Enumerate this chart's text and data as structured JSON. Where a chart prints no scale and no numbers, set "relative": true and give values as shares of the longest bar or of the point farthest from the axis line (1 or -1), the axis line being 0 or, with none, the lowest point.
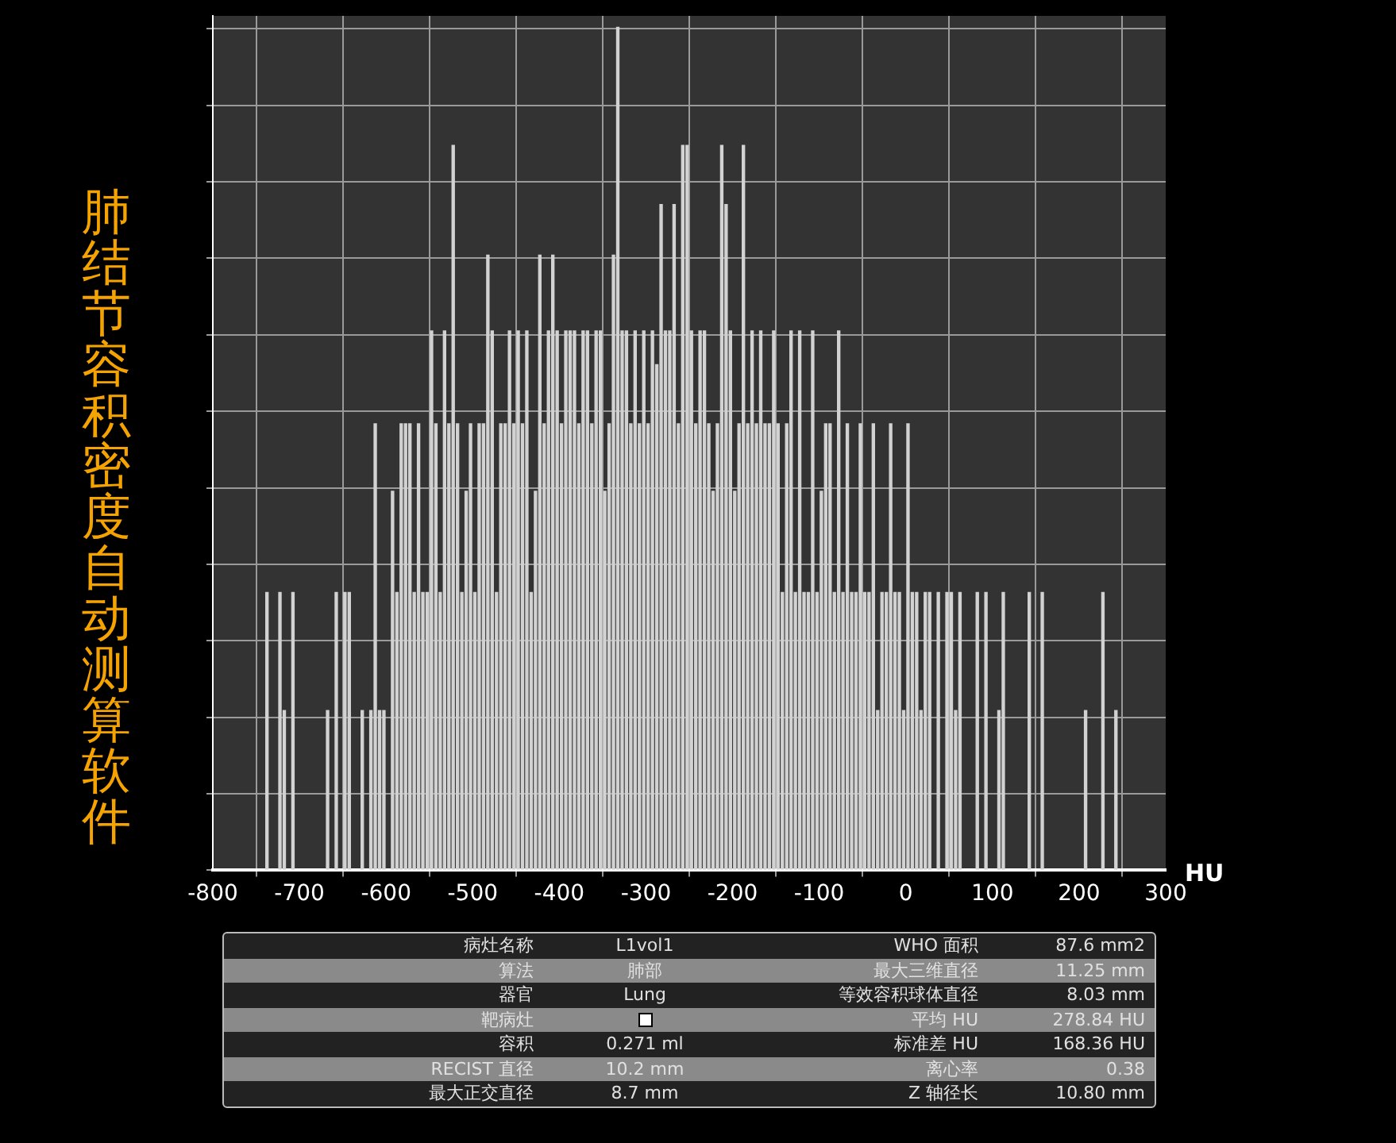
{
  "chart_data": {
    "type": "bar",
    "title": "肺结节容积密度自动测算软件",
    "xlabel": "HU",
    "relative": true,
    "grid": true,
    "color": "#d2d2d2",
    "xlim": [
      -800,
      300
    ],
    "xticks": [
      -800,
      -700,
      -600,
      -500,
      -400,
      -300,
      -200,
      -100,
      0,
      100,
      200,
      300
    ],
    "x": [
      -737.5,
      -722.5,
      -717.5,
      -707.5,
      -667.5,
      -657.5,
      -647.5,
      -642.5,
      -627.5,
      -617.5,
      -612.5,
      -607.5,
      -602.5,
      -592.5,
      -587.5,
      -582.5,
      -577.5,
      -572.5,
      -567.5,
      -562.5,
      -557.5,
      -552.5,
      -547.5,
      -542.5,
      -537.5,
      -532.5,
      -527.5,
      -522.5,
      -517.5,
      -512.5,
      -507.5,
      -502.5,
      -497.5,
      -492.5,
      -487.5,
      -482.5,
      -477.5,
      -472.5,
      -467.5,
      -462.5,
      -457.5,
      -452.5,
      -447.5,
      -442.5,
      -437.5,
      -432.5,
      -427.5,
      -422.5,
      -417.5,
      -412.5,
      -407.5,
      -402.5,
      -397.5,
      -392.5,
      -387.5,
      -382.5,
      -377.5,
      -372.5,
      -367.5,
      -362.5,
      -357.5,
      -352.5,
      -347.5,
      -342.5,
      -337.5,
      -332.5,
      -327.5,
      -322.5,
      -317.5,
      -312.5,
      -307.5,
      -302.5,
      -297.5,
      -292.5,
      -287.5,
      -282.5,
      -277.5,
      -272.5,
      -267.5,
      -262.5,
      -257.5,
      -252.5,
      -247.5,
      -242.5,
      -237.5,
      -232.5,
      -227.5,
      -222.5,
      -217.5,
      -212.5,
      -207.5,
      -202.5,
      -197.5,
      -192.5,
      -187.5,
      -182.5,
      -177.5,
      -172.5,
      -167.5,
      -162.5,
      -157.5,
      -152.5,
      -147.5,
      -142.5,
      -137.5,
      -132.5,
      -127.5,
      -122.5,
      -117.5,
      -112.5,
      -107.5,
      -102.5,
      -97.5,
      -92.5,
      -87.5,
      -82.5,
      -77.5,
      -72.5,
      -67.5,
      -62.5,
      -57.5,
      -52.5,
      -47.5,
      -42.5,
      -37.5,
      -32.5,
      -27.5,
      -22.5,
      -17.5,
      -12.5,
      -7.5,
      -2.5,
      2.5,
      7.5,
      12.5,
      17.5,
      22.5,
      27.5,
      37.5,
      47.5,
      52.5,
      57.5,
      62.5,
      82.5,
      92.5,
      107.5,
      112.5,
      142.5,
      157.5,
      207.5,
      227.5,
      242.5
    ],
    "values": [
      0.33,
      0.33,
      0.19,
      0.33,
      0.19,
      0.33,
      0.33,
      0.33,
      0.19,
      0.19,
      0.53,
      0.19,
      0.19,
      0.45,
      0.33,
      0.53,
      0.53,
      0.53,
      0.33,
      0.53,
      0.33,
      0.33,
      0.64,
      0.53,
      0.33,
      0.64,
      0.53,
      0.86,
      0.53,
      0.33,
      0.45,
      0.53,
      0.33,
      0.53,
      0.53,
      0.73,
      0.64,
      0.33,
      0.53,
      0.53,
      0.64,
      0.53,
      0.64,
      0.53,
      0.64,
      0.33,
      0.45,
      0.73,
      0.53,
      0.64,
      0.73,
      0.64,
      0.53,
      0.64,
      0.64,
      0.64,
      0.53,
      0.64,
      0.64,
      0.53,
      0.64,
      0.64,
      0.45,
      0.53,
      0.73,
      1,
      0.64,
      0.64,
      0.53,
      0.64,
      0.53,
      0.64,
      0.53,
      0.64,
      0.6,
      0.79,
      0.64,
      0.64,
      0.79,
      0.53,
      0.86,
      0.86,
      0.64,
      0.53,
      0.64,
      0.64,
      0.53,
      0.45,
      0.53,
      0.86,
      0.79,
      0.64,
      0.45,
      0.53,
      0.86,
      0.53,
      0.64,
      0.53,
      0.64,
      0.53,
      0.53,
      0.64,
      0.53,
      0.33,
      0.53,
      0.64,
      0.33,
      0.64,
      0.33,
      0.33,
      0.64,
      0.33,
      0.45,
      0.53,
      0.53,
      0.33,
      0.64,
      0.33,
      0.53,
      0.33,
      0.33,
      0.53,
      0.33,
      0.33,
      0.53,
      0.19,
      0.33,
      0.33,
      0.53,
      0.33,
      0.33,
      0.19,
      0.53,
      0.33,
      0.33,
      0.19,
      0.33,
      0.33,
      0.33,
      0.33,
      0.33,
      0.19,
      0.33,
      0.33,
      0.33,
      0.19,
      0.33,
      0.33,
      0.33,
      0.19,
      0.33,
      0.19
    ],
    "annotations": [
      "病灶名称",
      "L1vol1",
      "WHO 面积",
      "87.6 mm2",
      "算法",
      "肺部",
      "最大三维直径",
      "11.25 mm",
      "器官",
      "Lung",
      "等效容积球体直径",
      "8.03 mm",
      "靶病灶",
      "平均 HU",
      "278.84 HU",
      "容积",
      "0.271 ml",
      "标准差 HU",
      "168.36 HU",
      "RECIST 直径",
      "10.2 mm",
      "离心率",
      "0.38",
      "最大正交直径",
      "8.7 mm",
      "Z 轴径长",
      "10.80 mm"
    ]
  }
}
